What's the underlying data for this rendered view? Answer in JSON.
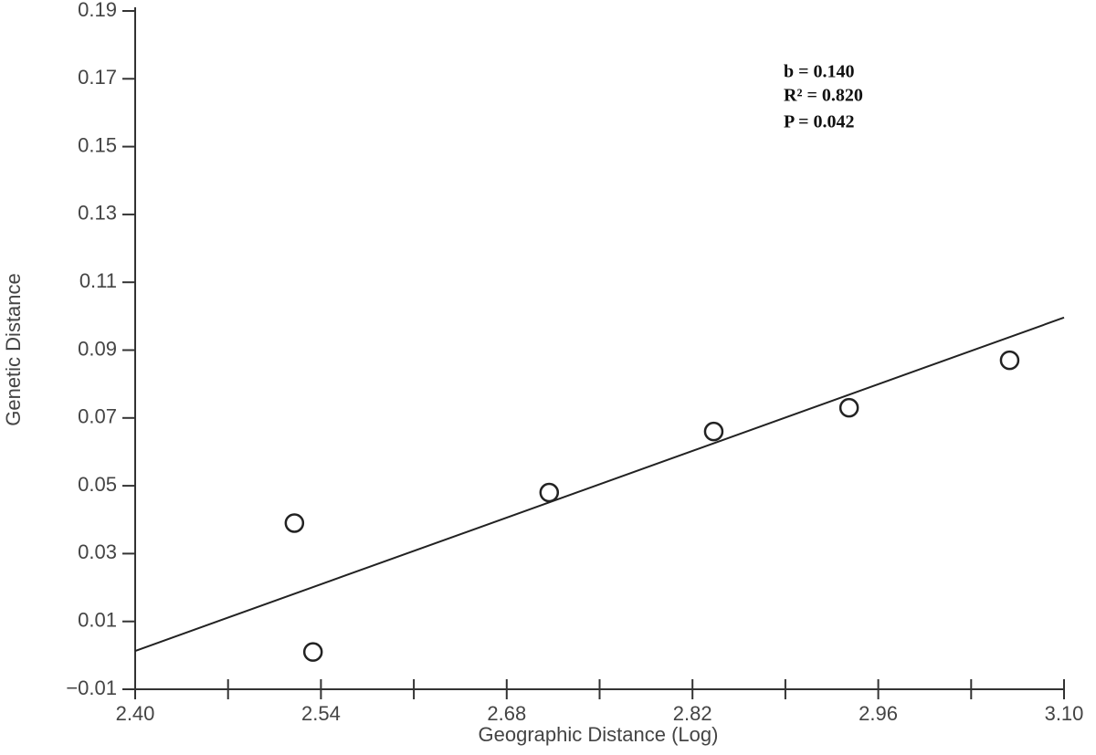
{
  "chart_data": {
    "type": "scatter",
    "xlabel": "Geographic Distance (Log)",
    "ylabel": "Genetic Distance",
    "xlim": [
      2.4,
      3.1
    ],
    "ylim": [
      -0.01,
      0.19
    ],
    "xticks": [
      {
        "value": 2.4,
        "label": "2.40"
      },
      {
        "value": 2.54,
        "label": "2.54"
      },
      {
        "value": 2.68,
        "label": "2.68"
      },
      {
        "value": 2.82,
        "label": "2.82"
      },
      {
        "value": 2.96,
        "label": "2.96"
      },
      {
        "value": 3.1,
        "label": "3.10"
      }
    ],
    "x_minor_ticks": [
      2.47,
      2.61,
      2.75,
      2.89,
      3.03
    ],
    "yticks": [
      {
        "value": -0.01,
        "label": "−0.01"
      },
      0.01,
      0.03,
      0.05,
      0.07,
      0.09,
      0.11,
      0.13,
      0.15,
      0.17,
      0.19
    ],
    "annotations": [
      "b = 0.140",
      "R² = 0.820",
      "P = 0.042"
    ],
    "series": [
      {
        "type": "scatter",
        "color": "#222222",
        "x": [
          2.52,
          2.534,
          2.712,
          2.836,
          2.938,
          3.059
        ],
        "y": [
          0.039,
          0.001,
          0.048,
          0.066,
          0.073,
          0.087
        ]
      },
      {
        "type": "line",
        "color": "#222222",
        "x": [
          2.4,
          3.1
        ],
        "y": [
          0.0013,
          0.0996
        ]
      }
    ]
  }
}
